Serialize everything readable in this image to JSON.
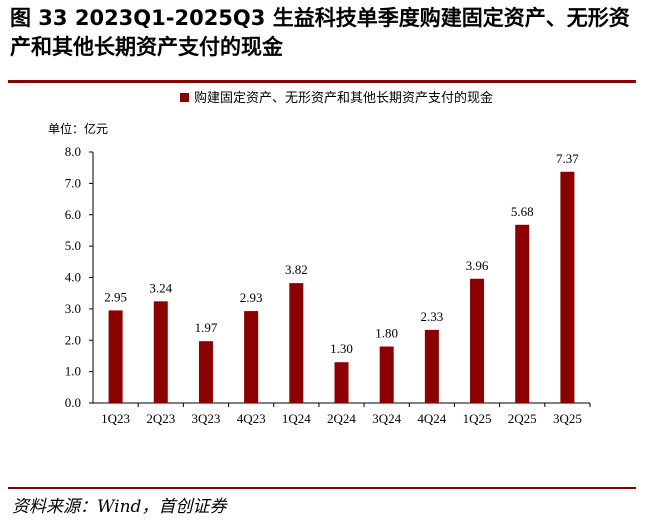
{
  "header": {
    "title": "图  33 2023Q1-2025Q3 生益科技单季度购建固定资产、无形资产和其他长期资产支付的现金"
  },
  "footer": {
    "source": "资料来源：Wind，首创证券"
  },
  "colors": {
    "bar": "#8b0000",
    "rule": "#8b0000"
  },
  "chart_data": {
    "type": "bar",
    "title": "",
    "unit_label": "单位：亿元",
    "legend": [
      "购建固定资产、无形资产和其他长期资产支付的现金"
    ],
    "legend_position": "top",
    "categories": [
      "1Q23",
      "2Q23",
      "3Q23",
      "4Q23",
      "1Q24",
      "2Q24",
      "3Q24",
      "4Q24",
      "1Q25",
      "2Q25",
      "3Q25"
    ],
    "series": [
      {
        "name": "购建固定资产、无形资产和其他长期资产支付的现金",
        "values": [
          2.95,
          3.24,
          1.97,
          2.93,
          3.82,
          1.3,
          1.8,
          2.33,
          3.96,
          5.68,
          7.37
        ],
        "labels": [
          "2.95",
          "3.24",
          "1.97",
          "2.93",
          "3.82",
          "1.30",
          "1.80",
          "2.33",
          "3.96",
          "5.68",
          "7.37"
        ]
      }
    ],
    "y_ticks": [
      "0.0",
      "1.0",
      "2.0",
      "3.0",
      "4.0",
      "5.0",
      "6.0",
      "7.0",
      "8.0"
    ],
    "ylim": [
      0,
      8
    ],
    "xlabel": "",
    "ylabel": "",
    "grid": false
  }
}
